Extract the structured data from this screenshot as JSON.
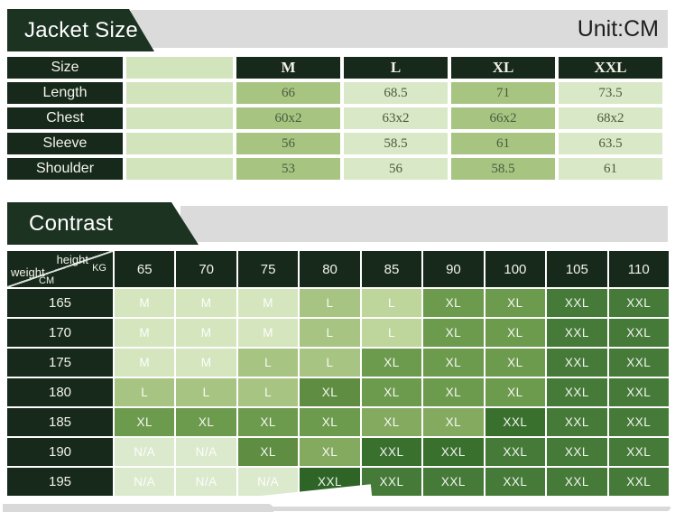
{
  "palette": {
    "banner_dark_green": "#1c3322",
    "table_dark_green": "#16291a",
    "banner_grey": "#dbdbdb",
    "size_value_text": "#4c5a40",
    "size_col_medium_green": "#a7c581",
    "size_col_light_green": "#d9e8c6",
    "size_col_empty_green": "#d2e4bb"
  },
  "size_section": {
    "title": "Jacket Size",
    "unit_label": "Unit:CM",
    "table": {
      "corner_label": "Size",
      "columns": [
        "M",
        "L",
        "XL",
        "XXL"
      ],
      "rows": [
        {
          "label": "Length",
          "values": [
            "66",
            "68.5",
            "71",
            "73.5"
          ]
        },
        {
          "label": "Chest",
          "values": [
            "60x2",
            "63x2",
            "66x2",
            "68x2"
          ]
        },
        {
          "label": "Sleeve",
          "values": [
            "56",
            "58.5",
            "61",
            "63.5"
          ]
        },
        {
          "label": "Shoulder",
          "values": [
            "53",
            "56",
            "58.5",
            "61"
          ]
        }
      ]
    }
  },
  "contrast_section": {
    "title": "Contrast",
    "corner": {
      "top_label": "height",
      "top_unit": "KG",
      "bottom_label": "weight",
      "bottom_unit": "CM"
    },
    "columns": [
      "65",
      "70",
      "75",
      "80",
      "85",
      "90",
      "100",
      "105",
      "110"
    ],
    "tones": {
      "m": "#d5e6bf",
      "na": "#dbe9cd",
      "l": "#a8c482",
      "l2": "#bed69c",
      "xl": "#6d9b4e",
      "xl2": "#83aa5f",
      "xl3": "#5f8e43",
      "xxl": "#467a38",
      "xxl2": "#3a702e",
      "xxl3": "#2e6527"
    },
    "rows": [
      {
        "label": "165",
        "cells": [
          {
            "v": "M",
            "tone": "m"
          },
          {
            "v": "M",
            "tone": "m"
          },
          {
            "v": "M",
            "tone": "m"
          },
          {
            "v": "L",
            "tone": "l"
          },
          {
            "v": "L",
            "tone": "l2"
          },
          {
            "v": "XL",
            "tone": "xl"
          },
          {
            "v": "XL",
            "tone": "xl"
          },
          {
            "v": "XXL",
            "tone": "xxl"
          },
          {
            "v": "XXL",
            "tone": "xxl"
          }
        ]
      },
      {
        "label": "170",
        "cells": [
          {
            "v": "M",
            "tone": "m"
          },
          {
            "v": "M",
            "tone": "m"
          },
          {
            "v": "M",
            "tone": "m"
          },
          {
            "v": "L",
            "tone": "l"
          },
          {
            "v": "L",
            "tone": "l2"
          },
          {
            "v": "XL",
            "tone": "xl"
          },
          {
            "v": "XL",
            "tone": "xl"
          },
          {
            "v": "XXL",
            "tone": "xxl"
          },
          {
            "v": "XXL",
            "tone": "xxl"
          }
        ]
      },
      {
        "label": "175",
        "cells": [
          {
            "v": "M",
            "tone": "m"
          },
          {
            "v": "M",
            "tone": "m"
          },
          {
            "v": "L",
            "tone": "l"
          },
          {
            "v": "L",
            "tone": "l"
          },
          {
            "v": "XL",
            "tone": "xl"
          },
          {
            "v": "XL",
            "tone": "xl"
          },
          {
            "v": "XL",
            "tone": "xl"
          },
          {
            "v": "XXL",
            "tone": "xxl"
          },
          {
            "v": "XXL",
            "tone": "xxl"
          }
        ]
      },
      {
        "label": "180",
        "cells": [
          {
            "v": "L",
            "tone": "l"
          },
          {
            "v": "L",
            "tone": "l"
          },
          {
            "v": "L",
            "tone": "l"
          },
          {
            "v": "XL",
            "tone": "xl3"
          },
          {
            "v": "XL",
            "tone": "xl"
          },
          {
            "v": "XL",
            "tone": "xl"
          },
          {
            "v": "XL",
            "tone": "xl"
          },
          {
            "v": "XXL",
            "tone": "xxl"
          },
          {
            "v": "XXL",
            "tone": "xxl"
          }
        ]
      },
      {
        "label": "185",
        "cells": [
          {
            "v": "XL",
            "tone": "xl"
          },
          {
            "v": "XL",
            "tone": "xl"
          },
          {
            "v": "XL",
            "tone": "xl"
          },
          {
            "v": "XL",
            "tone": "xl"
          },
          {
            "v": "XL",
            "tone": "xl2"
          },
          {
            "v": "XL",
            "tone": "xl2"
          },
          {
            "v": "XXL",
            "tone": "xxl2"
          },
          {
            "v": "XXL",
            "tone": "xxl"
          },
          {
            "v": "XXL",
            "tone": "xxl"
          }
        ]
      },
      {
        "label": "190",
        "cells": [
          {
            "v": "N/A",
            "tone": "na"
          },
          {
            "v": "N/A",
            "tone": "na"
          },
          {
            "v": "XL",
            "tone": "xl3"
          },
          {
            "v": "XL",
            "tone": "xl2"
          },
          {
            "v": "XXL",
            "tone": "xxl2"
          },
          {
            "v": "XXL",
            "tone": "xxl2"
          },
          {
            "v": "XXL",
            "tone": "xxl"
          },
          {
            "v": "XXL",
            "tone": "xxl"
          },
          {
            "v": "XXL",
            "tone": "xxl"
          }
        ]
      },
      {
        "label": "195",
        "cells": [
          {
            "v": "N/A",
            "tone": "na"
          },
          {
            "v": "N/A",
            "tone": "na"
          },
          {
            "v": "N/A",
            "tone": "na"
          },
          {
            "v": "XXL",
            "tone": "xxl3"
          },
          {
            "v": "XXL",
            "tone": "xxl"
          },
          {
            "v": "XXL",
            "tone": "xxl"
          },
          {
            "v": "XXL",
            "tone": "xxl"
          },
          {
            "v": "XXL",
            "tone": "xxl"
          },
          {
            "v": "XXL",
            "tone": "xxl"
          }
        ]
      }
    ]
  }
}
